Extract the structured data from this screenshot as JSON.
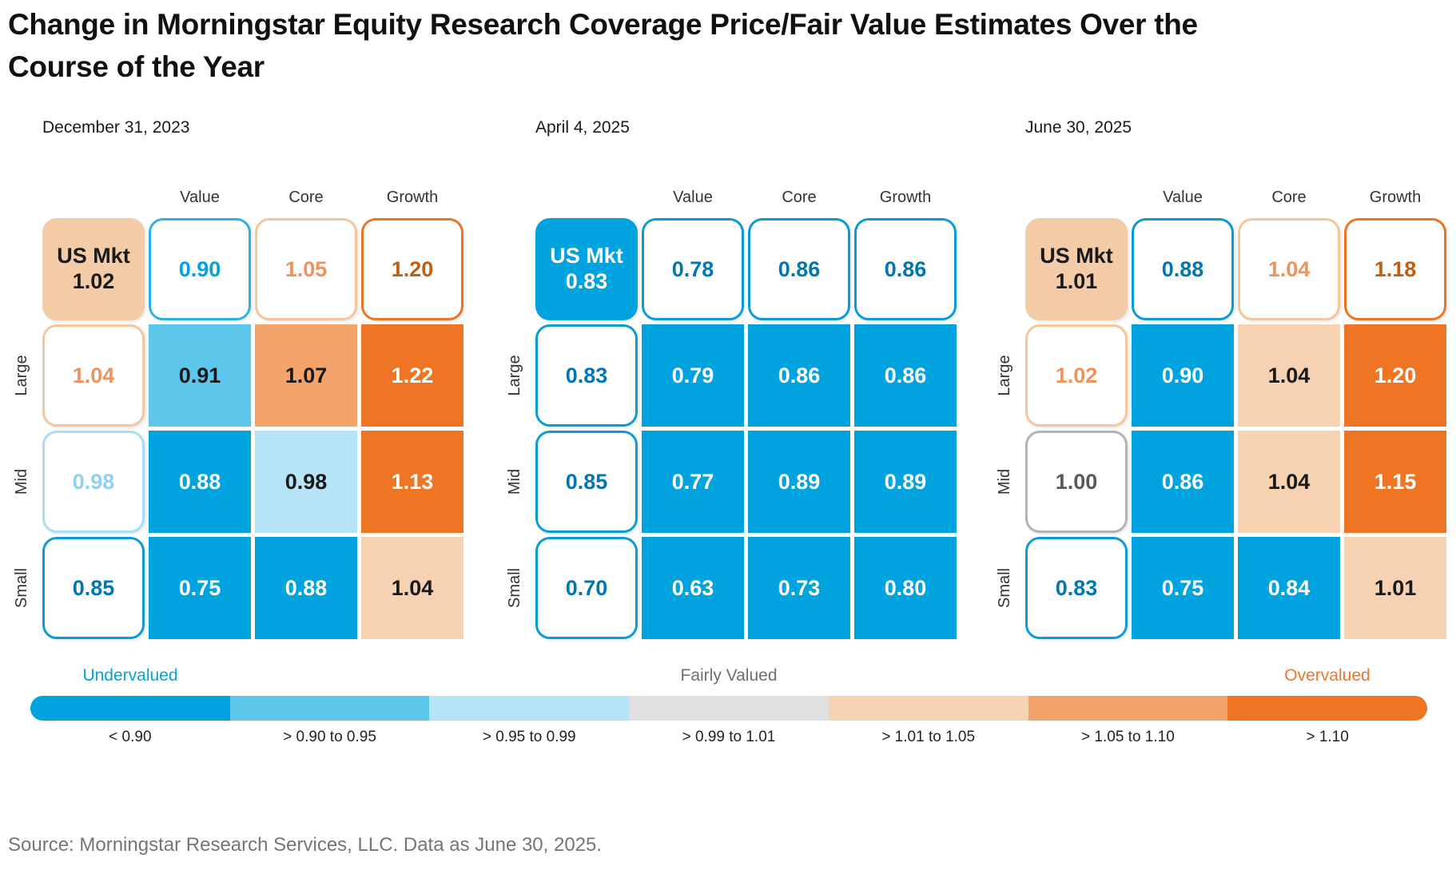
{
  "title_line1": "Change in Morningstar Equity Research Coverage Price/Fair Value Estimates Over the",
  "title_line2": "Course of the Year",
  "source": "Source: Morningstar Research Services, LLC. Data as June 30, 2025.",
  "legend": {
    "undervalued_label": "Undervalued",
    "fairly_valued_label": "Fairly Valued",
    "overvalued_label": "Overvalued",
    "undervalued_color": "#00A3DF",
    "fairly_valued_color": "#6F6F6F",
    "overvalued_color": "#F0752B",
    "segments": [
      {
        "label": "< 0.90",
        "range": "lt090"
      },
      {
        "label": "> 0.90 to 0.95",
        "range": "r090_095"
      },
      {
        "label": "> 0.95 to 0.99",
        "range": "r095_099"
      },
      {
        "label": "> 0.99 to 1.01",
        "range": "r099_101"
      },
      {
        "label": "> 1.01 to 1.05",
        "range": "r101_105"
      },
      {
        "label": "> 1.05 to 1.10",
        "range": "r105_110"
      },
      {
        "label": "> 1.10",
        "range": "gt110"
      }
    ]
  },
  "colors": {
    "ranges": {
      "lt090": {
        "fill": "#00A3DD",
        "border": "#0C9BD4",
        "text": "#0077B2",
        "text_on_fill": "#FFFFFF"
      },
      "r090_095": {
        "fill": "#5CC6EB",
        "border": "#2FB0E2",
        "text": "#00A3DF",
        "text_on_fill": "#1A1A1A"
      },
      "r095_099": {
        "fill": "#B6E3F5",
        "border": "#A9DDF3",
        "text": "#8ED2EF",
        "text_on_fill": "#1A1A1A"
      },
      "r099_101": {
        "fill": "#E0E0E0",
        "border": "#B3B3B3",
        "text": "#595959",
        "text_on_fill": "#1A1A1A"
      },
      "r101_105": {
        "fill": "#F6D2B2",
        "border": "#F5C69B",
        "text": "#F0925C",
        "text_on_fill": "#1A1A1A"
      },
      "r105_110": {
        "fill": "#F4A46B",
        "border": "#F29A5B",
        "text": "#EF8033",
        "text_on_fill": "#1A1A1A"
      },
      "gt110": {
        "fill": "#EE7523",
        "border": "#ED7424",
        "text": "#C25E10",
        "text_on_fill": "#FFFFFF"
      }
    },
    "title_color": "#111111",
    "label_color": "#333333",
    "source_color": "#757575"
  },
  "chart_data": [
    {
      "type": "heatmap",
      "date": "December 31, 2023",
      "columns": [
        "Value",
        "Core",
        "Growth"
      ],
      "rows": [
        "Large",
        "Mid",
        "Small"
      ],
      "us_mkt": {
        "label": "US Mkt",
        "value": "1.02",
        "fill": "#F3CBA6",
        "text": "#1A1A1A"
      },
      "top_cells": [
        {
          "value": "0.90",
          "range": "r090_095"
        },
        {
          "value": "1.05",
          "range": "r101_105"
        },
        {
          "value": "1.20",
          "range": "gt110"
        }
      ],
      "left_cells": [
        {
          "value": "1.04",
          "range": "r101_105"
        },
        {
          "value": "0.98",
          "range": "r095_099"
        },
        {
          "value": "0.85",
          "range": "lt090"
        }
      ],
      "cells": [
        [
          {
            "value": "0.91",
            "range": "r090_095"
          },
          {
            "value": "1.07",
            "range": "r105_110"
          },
          {
            "value": "1.22",
            "range": "gt110"
          }
        ],
        [
          {
            "value": "0.88",
            "range": "lt090"
          },
          {
            "value": "0.98",
            "range": "r095_099"
          },
          {
            "value": "1.13",
            "range": "gt110"
          }
        ],
        [
          {
            "value": "0.75",
            "range": "lt090"
          },
          {
            "value": "0.88",
            "range": "lt090"
          },
          {
            "value": "1.04",
            "range": "r101_105"
          }
        ]
      ]
    },
    {
      "type": "heatmap",
      "date": "April 4, 2025",
      "columns": [
        "Value",
        "Core",
        "Growth"
      ],
      "rows": [
        "Large",
        "Mid",
        "Small"
      ],
      "us_mkt": {
        "label": "US Mkt",
        "value": "0.83",
        "fill": "#00A3DD",
        "text": "#FFFFFF"
      },
      "top_cells": [
        {
          "value": "0.78",
          "range": "lt090"
        },
        {
          "value": "0.86",
          "range": "lt090"
        },
        {
          "value": "0.86",
          "range": "lt090"
        }
      ],
      "left_cells": [
        {
          "value": "0.83",
          "range": "lt090"
        },
        {
          "value": "0.85",
          "range": "lt090"
        },
        {
          "value": "0.70",
          "range": "lt090"
        }
      ],
      "cells": [
        [
          {
            "value": "0.79",
            "range": "lt090"
          },
          {
            "value": "0.86",
            "range": "lt090"
          },
          {
            "value": "0.86",
            "range": "lt090"
          }
        ],
        [
          {
            "value": "0.77",
            "range": "lt090"
          },
          {
            "value": "0.89",
            "range": "lt090"
          },
          {
            "value": "0.89",
            "range": "lt090"
          }
        ],
        [
          {
            "value": "0.63",
            "range": "lt090"
          },
          {
            "value": "0.73",
            "range": "lt090"
          },
          {
            "value": "0.80",
            "range": "lt090"
          }
        ]
      ]
    },
    {
      "type": "heatmap",
      "date": "June 30, 2025",
      "columns": [
        "Value",
        "Core",
        "Growth"
      ],
      "rows": [
        "Large",
        "Mid",
        "Small"
      ],
      "us_mkt": {
        "label": "US Mkt",
        "value": "1.01",
        "fill": "#F3CBA6",
        "text": "#1A1A1A"
      },
      "top_cells": [
        {
          "value": "0.88",
          "range": "lt090"
        },
        {
          "value": "1.04",
          "range": "r101_105"
        },
        {
          "value": "1.18",
          "range": "gt110"
        }
      ],
      "left_cells": [
        {
          "value": "1.02",
          "range": "r101_105"
        },
        {
          "value": "1.00",
          "range": "r099_101"
        },
        {
          "value": "0.83",
          "range": "lt090"
        }
      ],
      "cells": [
        [
          {
            "value": "0.90",
            "range": "lt090"
          },
          {
            "value": "1.04",
            "range": "r101_105"
          },
          {
            "value": "1.20",
            "range": "gt110"
          }
        ],
        [
          {
            "value": "0.86",
            "range": "lt090"
          },
          {
            "value": "1.04",
            "range": "r101_105"
          },
          {
            "value": "1.15",
            "range": "gt110"
          }
        ],
        [
          {
            "value": "0.75",
            "range": "lt090"
          },
          {
            "value": "0.84",
            "range": "lt090"
          },
          {
            "value": "1.01",
            "range": "r101_105"
          }
        ]
      ]
    }
  ]
}
